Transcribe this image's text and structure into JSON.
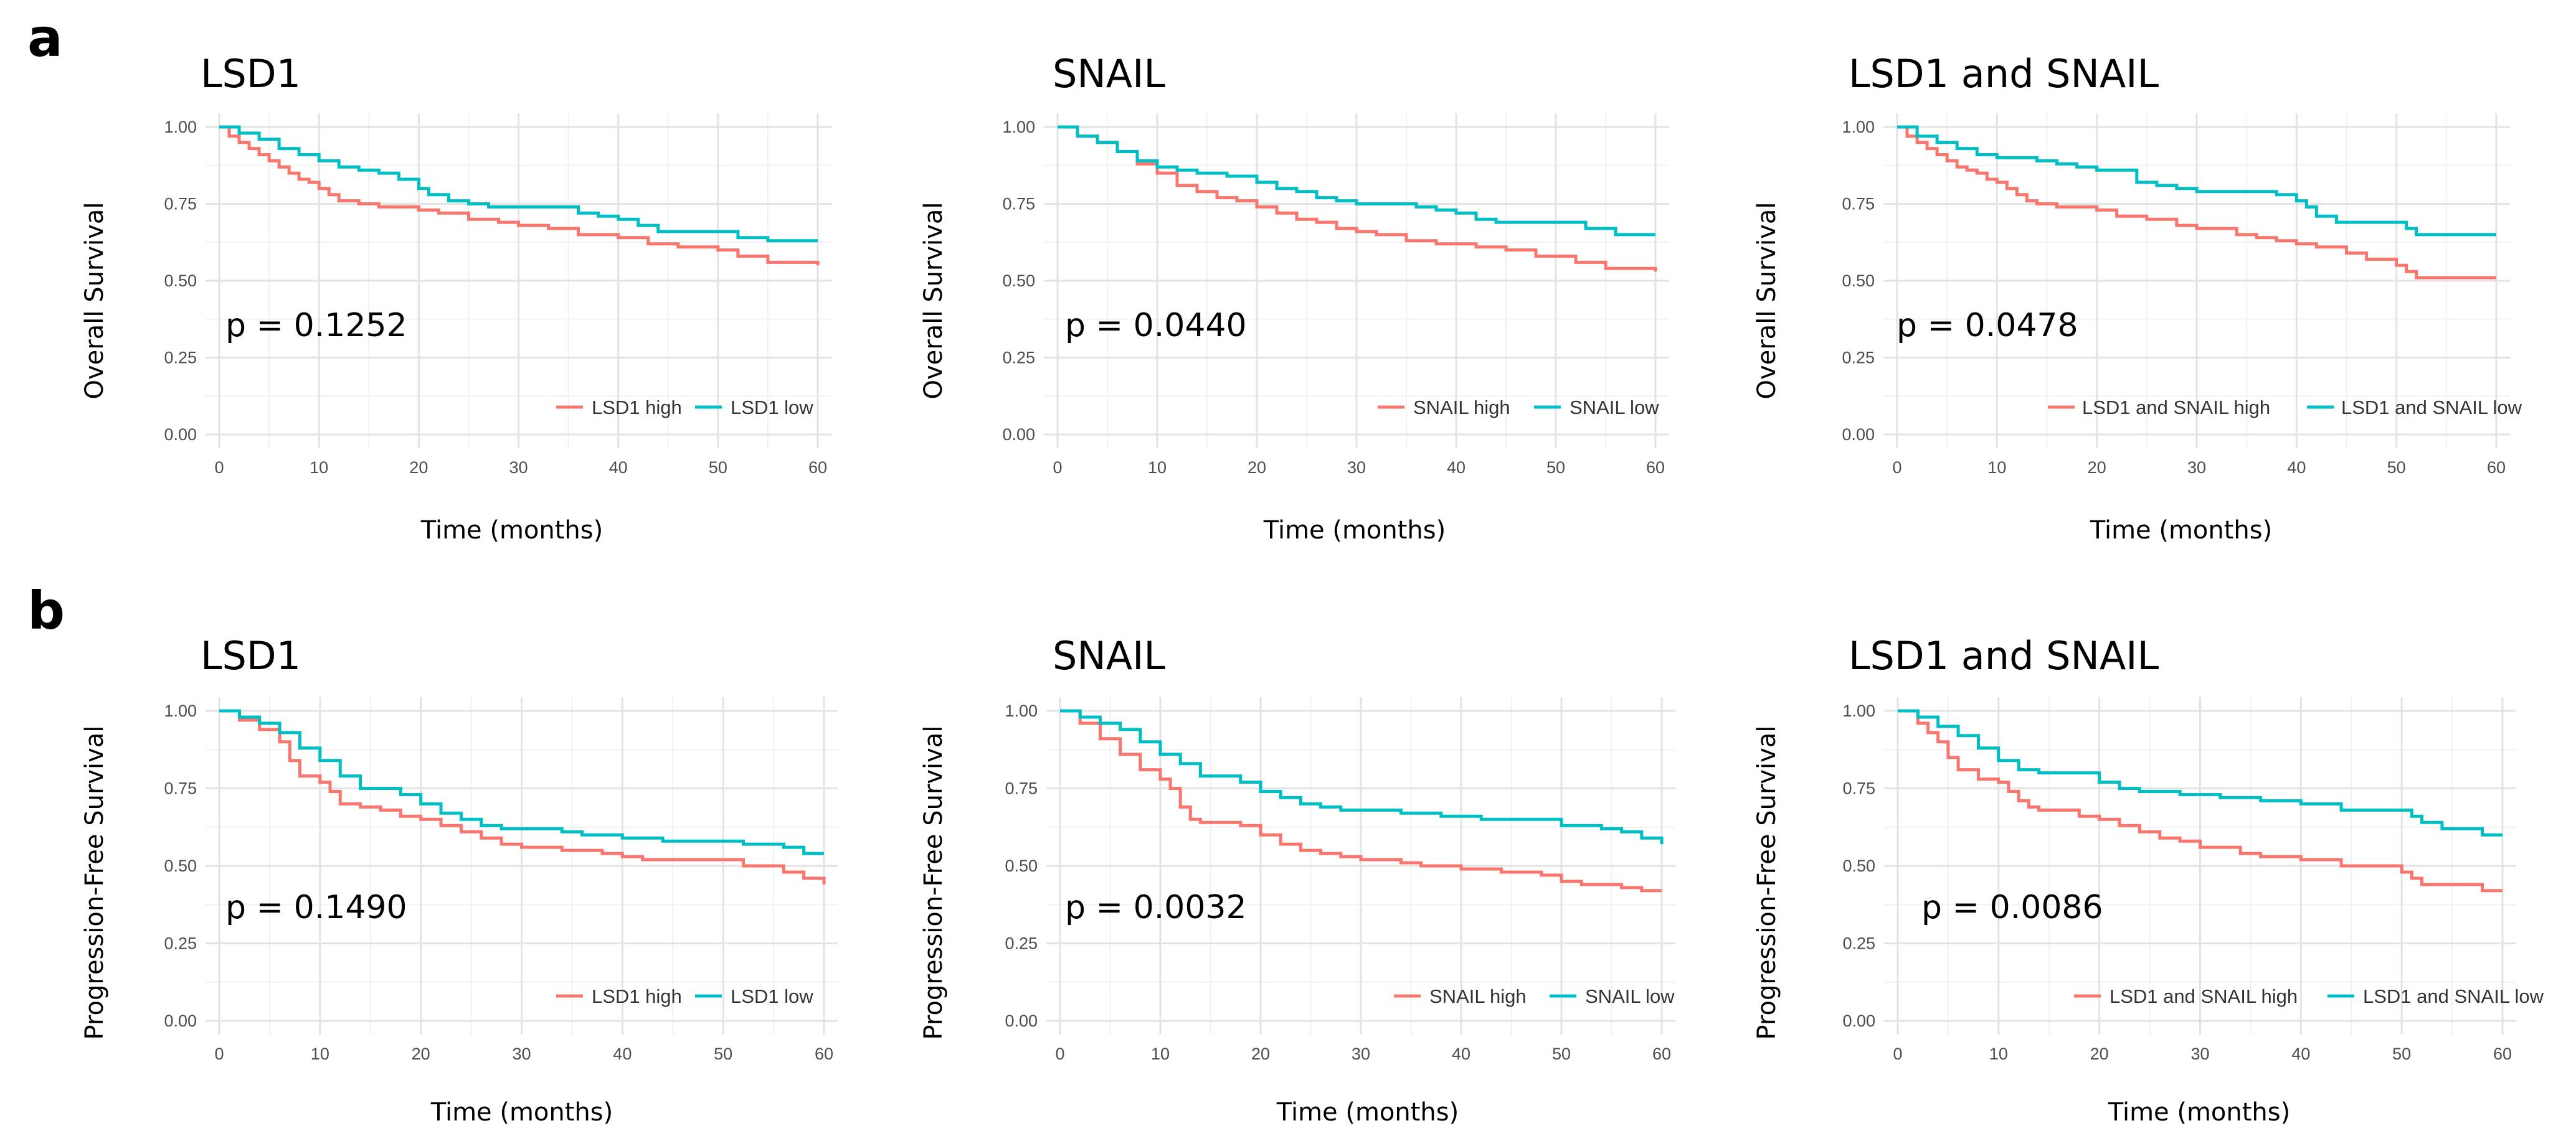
{
  "figure": {
    "panel_a_label": "a",
    "panel_b_label": "b"
  },
  "colors": {
    "high": "#F8766D",
    "low": "#00BFC4"
  },
  "chart_data": [
    {
      "type": "line",
      "id": "a-lsd1",
      "title": "LSD1",
      "xlabel": "Time (months)",
      "ylabel": "Overall Survival",
      "xlim": [
        0,
        60
      ],
      "ylim": [
        0,
        1
      ],
      "xticks": [
        "0",
        "10",
        "20",
        "30",
        "40",
        "50",
        "60"
      ],
      "yticks": [
        "0.00",
        "0.25",
        "0.50",
        "0.75",
        "1.00"
      ],
      "annotation": "p = 0.1252",
      "legend": [
        "LSD1 high",
        "LSD1 low"
      ],
      "series": [
        {
          "name": "LSD1 high",
          "x": [
            0,
            1,
            2,
            3,
            4,
            5,
            6,
            7,
            8,
            9,
            10,
            11,
            12,
            14,
            16,
            18,
            20,
            22,
            25,
            28,
            30,
            33,
            36,
            40,
            43,
            46,
            50,
            52,
            55,
            60
          ],
          "y": [
            1.0,
            0.97,
            0.95,
            0.93,
            0.91,
            0.89,
            0.87,
            0.85,
            0.83,
            0.82,
            0.8,
            0.78,
            0.76,
            0.75,
            0.74,
            0.74,
            0.73,
            0.72,
            0.7,
            0.69,
            0.68,
            0.67,
            0.65,
            0.64,
            0.62,
            0.61,
            0.6,
            0.58,
            0.56,
            0.55
          ]
        },
        {
          "name": "LSD1 low",
          "x": [
            0,
            2,
            4,
            6,
            8,
            10,
            12,
            14,
            16,
            18,
            20,
            21,
            23,
            25,
            27,
            32,
            36,
            38,
            40,
            42,
            44,
            50,
            52,
            55,
            60
          ],
          "y": [
            1.0,
            0.98,
            0.96,
            0.93,
            0.91,
            0.89,
            0.87,
            0.86,
            0.85,
            0.83,
            0.8,
            0.78,
            0.76,
            0.75,
            0.74,
            0.74,
            0.72,
            0.71,
            0.7,
            0.68,
            0.66,
            0.66,
            0.64,
            0.63,
            0.63
          ]
        }
      ]
    },
    {
      "type": "line",
      "id": "a-snail",
      "title": "SNAIL",
      "xlabel": "Time (months)",
      "ylabel": "Overall Survival",
      "xlim": [
        0,
        60
      ],
      "ylim": [
        0,
        1
      ],
      "xticks": [
        "0",
        "10",
        "20",
        "30",
        "40",
        "50",
        "60"
      ],
      "yticks": [
        "0.00",
        "0.25",
        "0.50",
        "0.75",
        "1.00"
      ],
      "annotation": "p = 0.0440",
      "legend": [
        "SNAIL high",
        "SNAIL low"
      ],
      "series": [
        {
          "name": "SNAIL high",
          "x": [
            0,
            2,
            4,
            6,
            8,
            10,
            12,
            14,
            16,
            18,
            20,
            22,
            24,
            26,
            28,
            30,
            32,
            35,
            38,
            42,
            45,
            48,
            52,
            55,
            60
          ],
          "y": [
            1.0,
            0.97,
            0.95,
            0.92,
            0.88,
            0.85,
            0.81,
            0.79,
            0.77,
            0.76,
            0.74,
            0.72,
            0.7,
            0.69,
            0.67,
            0.66,
            0.65,
            0.63,
            0.62,
            0.61,
            0.6,
            0.58,
            0.56,
            0.54,
            0.53
          ]
        },
        {
          "name": "SNAIL low",
          "x": [
            0,
            2,
            4,
            6,
            8,
            10,
            12,
            14,
            17,
            20,
            22,
            24,
            26,
            28,
            30,
            34,
            36,
            38,
            40,
            42,
            44,
            50,
            53,
            56,
            60
          ],
          "y": [
            1.0,
            0.97,
            0.95,
            0.92,
            0.89,
            0.87,
            0.86,
            0.85,
            0.84,
            0.82,
            0.8,
            0.79,
            0.77,
            0.76,
            0.75,
            0.75,
            0.74,
            0.73,
            0.72,
            0.7,
            0.69,
            0.69,
            0.67,
            0.65,
            0.65
          ]
        }
      ]
    },
    {
      "type": "line",
      "id": "a-both",
      "title": "LSD1 and SNAIL",
      "xlabel": "Time (months)",
      "ylabel": "Overall Survival",
      "xlim": [
        0,
        60
      ],
      "ylim": [
        0,
        1
      ],
      "xticks": [
        "0",
        "10",
        "20",
        "30",
        "40",
        "50",
        "60"
      ],
      "yticks": [
        "0.00",
        "0.25",
        "0.50",
        "0.75",
        "1.00"
      ],
      "annotation": "p = 0.0478",
      "legend": [
        "LSD1 and SNAIL high",
        "LSD1 and SNAIL low"
      ],
      "series": [
        {
          "name": "LSD1 and SNAIL high",
          "x": [
            0,
            1,
            2,
            3,
            4,
            5,
            6,
            7,
            8,
            9,
            10,
            11,
            12,
            13,
            14,
            16,
            20,
            22,
            25,
            28,
            30,
            34,
            36,
            38,
            40,
            42,
            45,
            47,
            50,
            51,
            52,
            60
          ],
          "y": [
            1.0,
            0.97,
            0.95,
            0.93,
            0.91,
            0.89,
            0.87,
            0.86,
            0.85,
            0.83,
            0.82,
            0.8,
            0.78,
            0.76,
            0.75,
            0.74,
            0.73,
            0.71,
            0.7,
            0.68,
            0.67,
            0.65,
            0.64,
            0.63,
            0.62,
            0.61,
            0.59,
            0.57,
            0.55,
            0.53,
            0.51,
            0.51
          ]
        },
        {
          "name": "LSD1 and SNAIL low",
          "x": [
            0,
            2,
            4,
            6,
            8,
            10,
            14,
            16,
            18,
            20,
            24,
            26,
            28,
            30,
            38,
            40,
            41,
            42,
            44,
            48,
            51,
            52,
            60
          ],
          "y": [
            1.0,
            0.97,
            0.95,
            0.93,
            0.91,
            0.9,
            0.89,
            0.88,
            0.87,
            0.86,
            0.82,
            0.81,
            0.8,
            0.79,
            0.78,
            0.76,
            0.74,
            0.71,
            0.69,
            0.69,
            0.67,
            0.65,
            0.65
          ]
        }
      ]
    },
    {
      "type": "line",
      "id": "b-lsd1",
      "title": "LSD1",
      "xlabel": "Time (months)",
      "ylabel": "Progression-Free Survival",
      "xlim": [
        0,
        60
      ],
      "ylim": [
        0,
        1
      ],
      "xticks": [
        "0",
        "10",
        "20",
        "30",
        "40",
        "50",
        "60"
      ],
      "yticks": [
        "0.00",
        "0.25",
        "0.50",
        "0.75",
        "1.00"
      ],
      "annotation": "p = 0.1490",
      "legend": [
        "LSD1 high",
        "LSD1 low"
      ],
      "series": [
        {
          "name": "LSD1 high",
          "x": [
            0,
            2,
            4,
            6,
            7,
            8,
            10,
            11,
            12,
            14,
            16,
            18,
            20,
            22,
            24,
            26,
            28,
            30,
            34,
            38,
            40,
            42,
            48,
            52,
            56,
            58,
            60
          ],
          "y": [
            1.0,
            0.97,
            0.94,
            0.9,
            0.84,
            0.79,
            0.77,
            0.74,
            0.7,
            0.69,
            0.68,
            0.66,
            0.65,
            0.63,
            0.61,
            0.59,
            0.57,
            0.56,
            0.55,
            0.54,
            0.53,
            0.52,
            0.52,
            0.5,
            0.48,
            0.46,
            0.44
          ]
        },
        {
          "name": "LSD1 low",
          "x": [
            0,
            2,
            4,
            6,
            8,
            10,
            12,
            14,
            18,
            20,
            22,
            24,
            26,
            28,
            34,
            36,
            40,
            44,
            52,
            56,
            58,
            60
          ],
          "y": [
            1.0,
            0.98,
            0.96,
            0.93,
            0.88,
            0.84,
            0.79,
            0.75,
            0.73,
            0.7,
            0.67,
            0.65,
            0.63,
            0.62,
            0.61,
            0.6,
            0.59,
            0.58,
            0.57,
            0.56,
            0.54,
            0.54
          ]
        }
      ]
    },
    {
      "type": "line",
      "id": "b-snail",
      "title": "SNAIL",
      "xlabel": "Time (months)",
      "ylabel": "Progression-Free Survival",
      "xlim": [
        0,
        60
      ],
      "ylim": [
        0,
        1
      ],
      "xticks": [
        "0",
        "10",
        "20",
        "30",
        "40",
        "50",
        "60"
      ],
      "yticks": [
        "0.00",
        "0.25",
        "0.50",
        "0.75",
        "1.00"
      ],
      "annotation": "p = 0.0032",
      "legend": [
        "SNAIL high",
        "SNAIL low"
      ],
      "series": [
        {
          "name": "SNAIL high",
          "x": [
            0,
            2,
            4,
            6,
            8,
            10,
            11,
            12,
            13,
            14,
            18,
            20,
            22,
            24,
            26,
            28,
            30,
            34,
            36,
            40,
            44,
            48,
            50,
            52,
            56,
            58,
            60
          ],
          "y": [
            1.0,
            0.96,
            0.91,
            0.86,
            0.81,
            0.78,
            0.75,
            0.69,
            0.65,
            0.64,
            0.63,
            0.6,
            0.57,
            0.55,
            0.54,
            0.53,
            0.52,
            0.51,
            0.5,
            0.49,
            0.48,
            0.47,
            0.45,
            0.44,
            0.43,
            0.42,
            0.42
          ]
        },
        {
          "name": "SNAIL low",
          "x": [
            0,
            2,
            4,
            6,
            8,
            10,
            12,
            14,
            18,
            20,
            22,
            24,
            26,
            28,
            30,
            34,
            38,
            42,
            50,
            54,
            56,
            58,
            60
          ],
          "y": [
            1.0,
            0.98,
            0.96,
            0.94,
            0.9,
            0.86,
            0.83,
            0.79,
            0.77,
            0.74,
            0.72,
            0.7,
            0.69,
            0.68,
            0.68,
            0.67,
            0.66,
            0.65,
            0.63,
            0.62,
            0.61,
            0.59,
            0.57
          ]
        }
      ]
    },
    {
      "type": "line",
      "id": "b-both",
      "title": "LSD1 and SNAIL",
      "xlabel": "Time (months)",
      "ylabel": "Progression-Free Survival",
      "xlim": [
        0,
        60
      ],
      "ylim": [
        0,
        1
      ],
      "xticks": [
        "0",
        "10",
        "20",
        "30",
        "40",
        "50",
        "60"
      ],
      "yticks": [
        "0.00",
        "0.25",
        "0.50",
        "0.75",
        "1.00"
      ],
      "annotation": "p = 0.0086",
      "legend": [
        "LSD1 and SNAIL high",
        "LSD1 and SNAIL low"
      ],
      "series": [
        {
          "name": "LSD1 and SNAIL high",
          "x": [
            0,
            2,
            3,
            4,
            5,
            6,
            8,
            10,
            11,
            12,
            13,
            14,
            18,
            20,
            22,
            24,
            26,
            28,
            30,
            34,
            36,
            40,
            44,
            50,
            51,
            52,
            56,
            58,
            60
          ],
          "y": [
            1.0,
            0.96,
            0.93,
            0.9,
            0.85,
            0.81,
            0.78,
            0.77,
            0.74,
            0.71,
            0.69,
            0.68,
            0.66,
            0.65,
            0.63,
            0.61,
            0.59,
            0.58,
            0.56,
            0.54,
            0.53,
            0.52,
            0.5,
            0.48,
            0.46,
            0.44,
            0.44,
            0.42,
            0.42
          ]
        },
        {
          "name": "LSD1 and SNAIL low",
          "x": [
            0,
            2,
            4,
            6,
            8,
            10,
            12,
            14,
            20,
            22,
            24,
            28,
            32,
            36,
            40,
            44,
            51,
            52,
            54,
            58,
            60
          ],
          "y": [
            1.0,
            0.98,
            0.95,
            0.92,
            0.88,
            0.84,
            0.81,
            0.8,
            0.77,
            0.75,
            0.74,
            0.73,
            0.72,
            0.71,
            0.7,
            0.68,
            0.66,
            0.64,
            0.62,
            0.6,
            0.6
          ]
        }
      ]
    }
  ]
}
